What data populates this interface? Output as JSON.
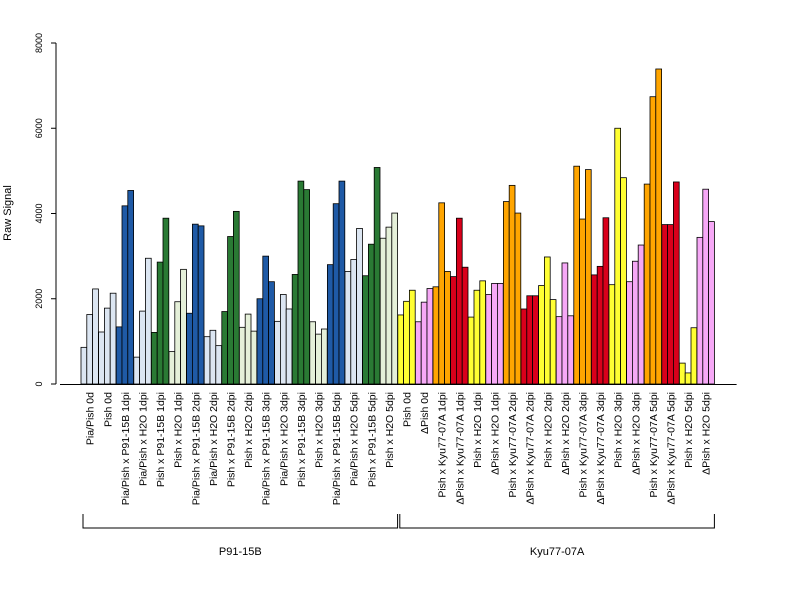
{
  "chart_data": {
    "type": "bar",
    "ylabel": "Raw Signal",
    "ylim": [
      0,
      8000
    ],
    "yticks": [
      0,
      2000,
      4000,
      6000,
      8000
    ],
    "grid": false,
    "bars_per_group": 3,
    "categories": [
      "Pia/Pish 0d",
      "Pish 0d",
      "Pia/Pish x P91-15B 1dpi",
      "Pia/Pish x H2O 1dpi",
      "Pish x P91-15B 1dpi",
      "Pish x H2O 1dpi",
      "Pia/Pish x P91-15B 2dpi",
      "Pia/Pish x H2O 2dpi",
      "Pish x P91-15B 2dpi",
      "Pish x H2O 2dpi",
      "Pia/Pish x P91-15B 3dpi",
      "Pia/Pish x H2O 3dpi",
      "Pish x P91-15B 3dpi",
      "Pish x H2O 3dpi",
      "Pia/Pish x P91-15B 5dpi",
      "Pia/Pish x H2O 5dpi",
      "Pish x P91-15B 5dpi",
      "Pish x H2O 5dpi",
      "Pish 0d",
      "ΔPish 0d",
      "Pish x Kyu77-07A 1dpi",
      "ΔPish x Kyu77-07A 1dpi",
      "Pish x H2O 1dpi",
      "ΔPish x H2O 1dpi",
      "Pish x Kyu77-07A 2dpi",
      "ΔPish x Kyu77-07A 2dpi",
      "Pish x H2O 2dpi",
      "ΔPish x H2O 2dpi",
      "Pish x Kyu77-07A 3dpi",
      "ΔPish x Kyu77-07A 3dpi",
      "Pish x H2O 3dpi",
      "ΔPish x H2O 3dpi",
      "Pish x Kyu77-07A 5dpi",
      "ΔPish x Kyu77-07A 5dpi",
      "Pish x H2O 5dpi",
      "ΔPish x H2O 5dpi"
    ],
    "colors": [
      "#dce6f2",
      "#dce6f2",
      "#1f5aa6",
      "#dce6f2",
      "#2a7a34",
      "#e5f0d9",
      "#1f5aa6",
      "#dce6f2",
      "#2a7a34",
      "#e5f0d9",
      "#1f5aa6",
      "#dce6f2",
      "#2a7a34",
      "#e5f0d9",
      "#1f5aa6",
      "#dce6f2",
      "#2a7a34",
      "#e5f0d9",
      "#ffff33",
      "#f6a8f6",
      "#ffa500",
      "#d9001b",
      "#ffff33",
      "#f6a8f6",
      "#ffa500",
      "#d9001b",
      "#ffff33",
      "#f6a8f6",
      "#ffa500",
      "#d9001b",
      "#ffff33",
      "#f6a8f6",
      "#ffa500",
      "#d9001b",
      "#ffff33",
      "#f6a8f6"
    ],
    "values": [
      [
        860,
        1630,
        2230
      ],
      [
        1220,
        1780,
        2130
      ],
      [
        1340,
        4180,
        4540
      ],
      [
        630,
        1710,
        2950
      ],
      [
        1210,
        2860,
        3890
      ],
      [
        760,
        1930,
        2690
      ],
      [
        1660,
        3750,
        3710
      ],
      [
        1110,
        1260,
        900
      ],
      [
        1700,
        3460,
        4050
      ],
      [
        1330,
        1640,
        1240
      ],
      [
        2000,
        3000,
        2400
      ],
      [
        1470,
        2100,
        1760
      ],
      [
        2570,
        4760,
        4560
      ],
      [
        1460,
        1170,
        1290
      ],
      [
        2800,
        4230,
        4760
      ],
      [
        2640,
        2920,
        3650
      ],
      [
        2540,
        3280,
        5080
      ],
      [
        3420,
        3680,
        4010
      ],
      [
        1620,
        1940,
        2200
      ],
      [
        1460,
        1920,
        2240
      ],
      [
        2280,
        4250,
        2640
      ],
      [
        2520,
        3890,
        2740
      ],
      [
        1570,
        2200,
        2420
      ],
      [
        2100,
        2360,
        2360
      ],
      [
        4280,
        4660,
        4010
      ],
      [
        1760,
        2070,
        2070
      ],
      [
        2310,
        2980,
        1980
      ],
      [
        1580,
        2840,
        1600
      ],
      [
        5110,
        3870,
        5030
      ],
      [
        2560,
        2760,
        3900
      ],
      [
        2330,
        6000,
        4840
      ],
      [
        2400,
        2880,
        3260
      ],
      [
        4690,
        6740,
        7390
      ],
      [
        3740,
        3740,
        4740
      ],
      [
        490,
        260,
        1320
      ],
      [
        3440,
        4570,
        3810
      ]
    ],
    "groups": [
      {
        "label": "P91-15B",
        "from": 0,
        "to": 17
      },
      {
        "label": "Kyu77-07A",
        "from": 18,
        "to": 35
      }
    ]
  }
}
